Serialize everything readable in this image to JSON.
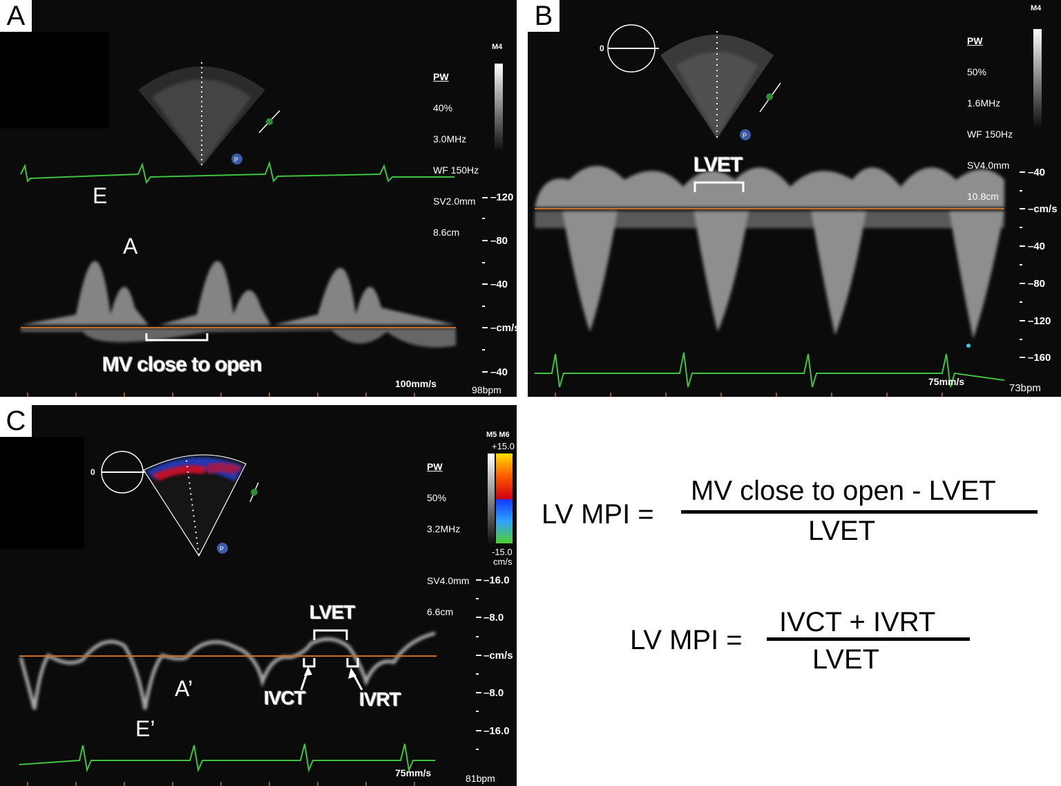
{
  "panelA": {
    "letter": "A",
    "settings": {
      "mode": "PW",
      "lines": [
        "40%",
        "3.0MHz",
        "WF 150Hz",
        "SV2.0mm",
        "8.6cm"
      ],
      "probe": "M4"
    },
    "ticks": [
      "120",
      "80",
      "40",
      "cm/s",
      "40"
    ],
    "labels": {
      "E": "E",
      "A": "A",
      "mv_close_to_open": "MV close to open"
    },
    "sweep": "100mm/s",
    "heart_rate": "98bpm"
  },
  "panelB": {
    "letter": "B",
    "settings": {
      "mode": "PW",
      "lines": [
        "50%",
        "1.6MHz",
        "WF 150Hz",
        "SV4.0mm",
        "10.8cm"
      ],
      "probe": "M4"
    },
    "ticks": [
      "40",
      "cm/s",
      "40",
      "80",
      "120",
      "160"
    ],
    "labels": {
      "lvet": "LVET",
      "angle": "0"
    },
    "sweep": "75mm/s",
    "heart_rate": "73bpm"
  },
  "panelC": {
    "letter": "C",
    "settings": {
      "mode": "PW",
      "lines": [
        "50%",
        "3.2MHz",
        "",
        "SV4.0mm",
        "6.6cm"
      ],
      "probe": "M5 M6"
    },
    "color_bar": {
      "top": "+15.0",
      "bottom": "-15.0",
      "unit": "cm/s"
    },
    "ticks": [
      "16.0",
      "8.0",
      "cm/s",
      "8.0",
      "16.0"
    ],
    "labels": {
      "lvet": "LVET",
      "ivct": "IVCT",
      "ivrt": "IVRT",
      "e_prime": "E’",
      "a_prime": "A’",
      "angle": "0"
    },
    "sweep": "75mm/s",
    "heart_rate": "81bpm"
  },
  "formulas": {
    "f1": {
      "lhs": "LV MPI =",
      "numerator": "MV close to open - LVET",
      "denominator": "LVET"
    },
    "f2": {
      "lhs": "LV MPI =",
      "numerator": "IVCT + IVRT",
      "denominator": "LVET"
    }
  },
  "colors": {
    "baseline": "#c8702a",
    "ecg": "#3ec43e",
    "panel_bg": "#0b0b0b"
  }
}
